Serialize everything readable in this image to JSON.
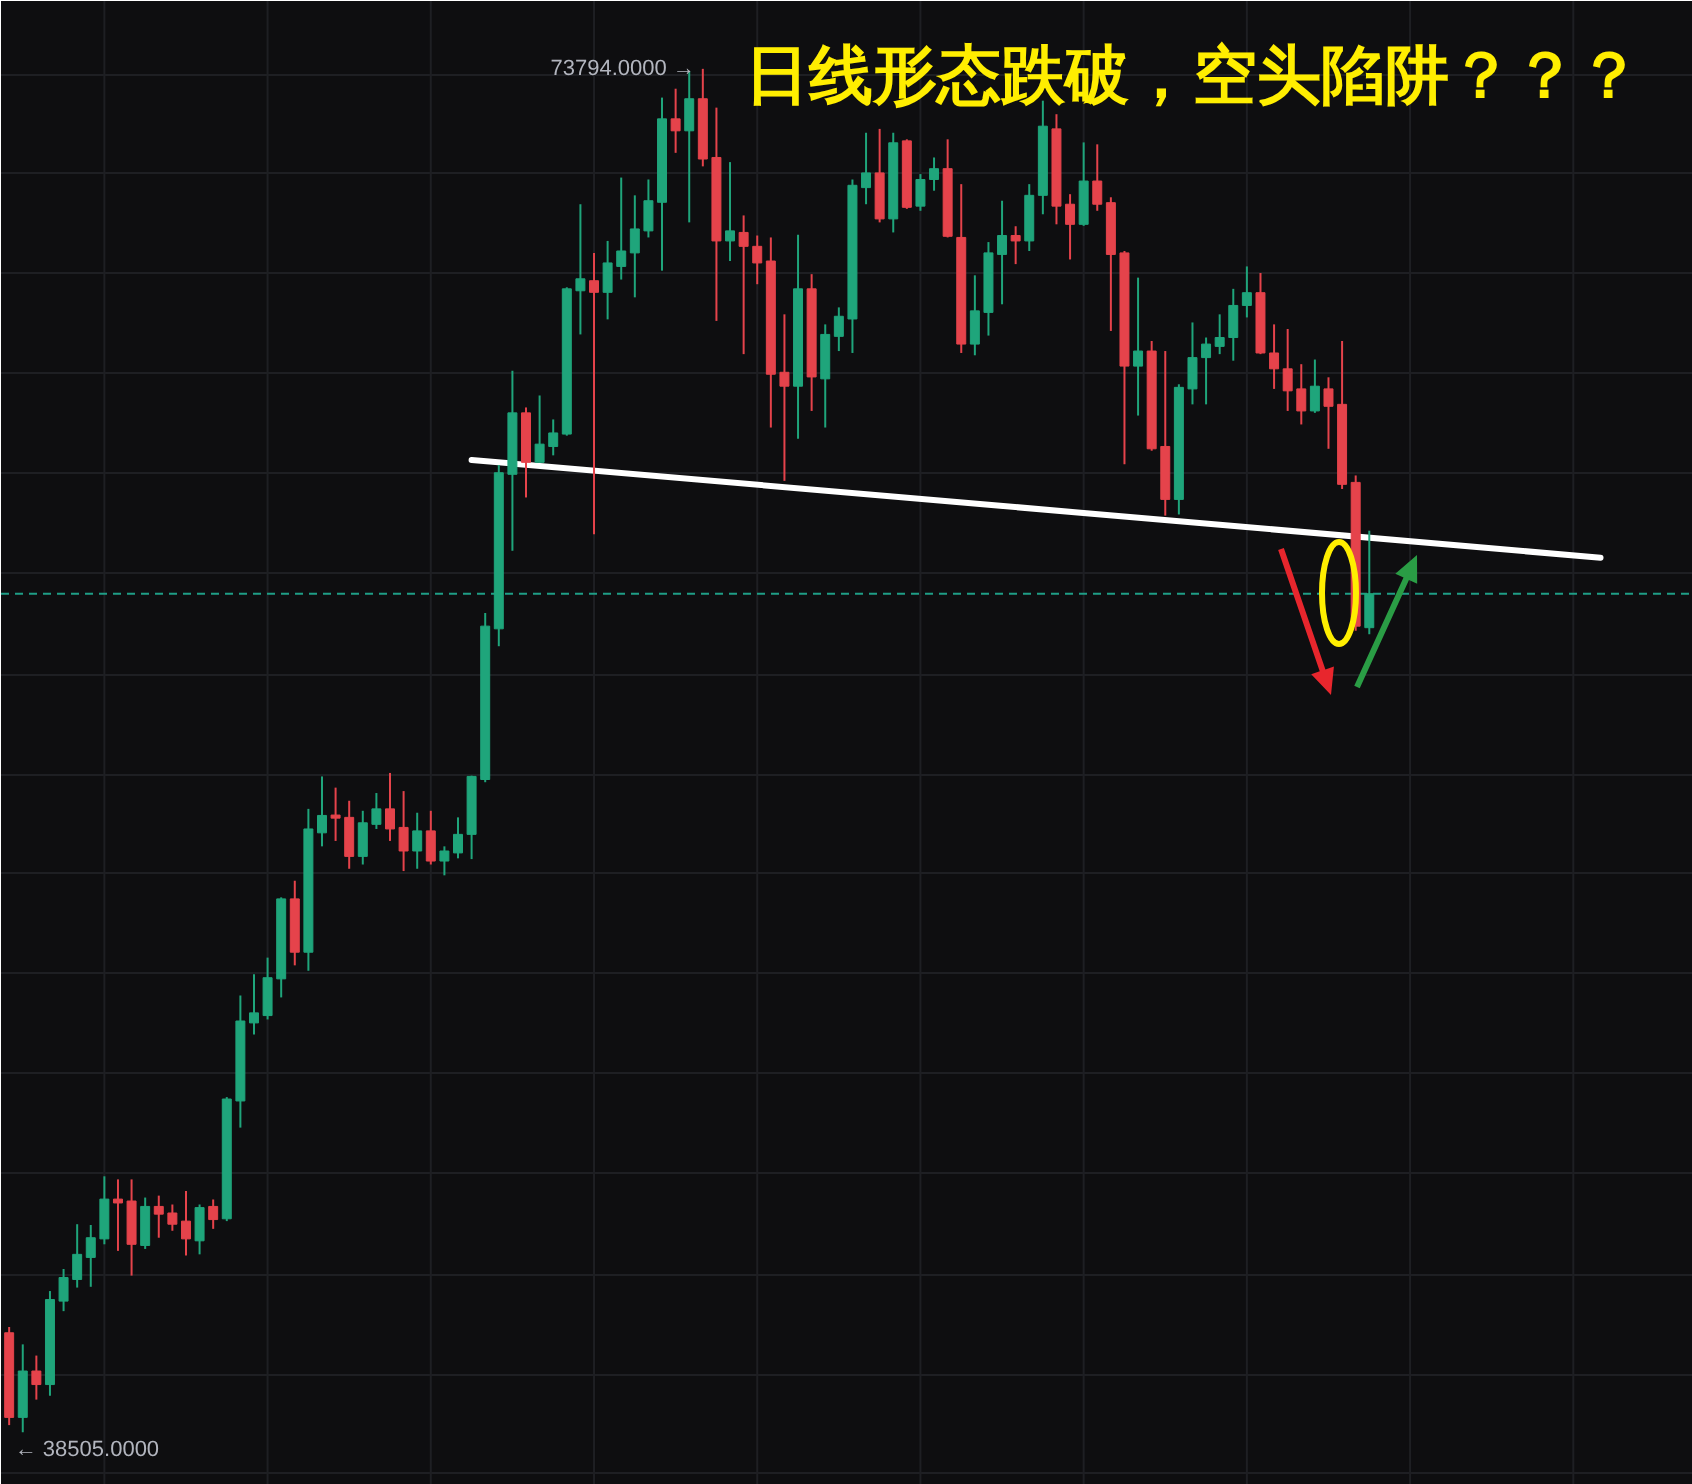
{
  "chart_data": {
    "type": "candlestick",
    "title": "日线形态跌破，空头陷阱？？？",
    "categories": [
      null,
      null,
      null,
      null,
      null,
      null,
      null,
      null,
      null,
      null,
      null,
      null,
      null,
      null,
      null,
      null,
      null,
      null,
      null,
      null,
      null,
      null,
      null,
      null,
      null,
      null,
      null,
      null,
      null,
      null,
      null,
      null,
      null,
      null,
      null,
      null,
      null,
      null,
      null,
      null,
      null,
      null,
      null,
      null,
      null,
      null,
      null,
      null,
      null,
      null,
      null,
      null,
      null,
      null,
      null,
      null,
      null,
      null,
      null,
      null,
      null,
      null,
      null,
      null,
      null,
      null,
      null,
      null,
      null,
      null,
      null,
      null,
      null,
      null,
      null,
      null,
      null,
      null,
      null,
      null,
      null,
      null,
      null,
      null,
      null,
      null,
      null,
      null,
      null,
      null,
      null,
      null,
      null,
      null,
      null,
      null,
      null,
      null,
      null,
      null,
      null,
      null,
      null,
      null,
      null,
      null,
      null,
      null,
      null,
      null,
      null,
      null,
      null,
      null,
      null,
      null,
      null,
      null,
      null,
      null,
      null,
      null,
      null,
      null
    ],
    "ohlc": [
      [
        41080,
        41230,
        38690,
        38890
      ],
      [
        38890,
        40780,
        38505,
        40090
      ],
      [
        40090,
        40490,
        39350,
        39740
      ],
      [
        39740,
        42160,
        39450,
        41940
      ],
      [
        41900,
        42730,
        41640,
        42510
      ],
      [
        42460,
        43890,
        42250,
        43110
      ],
      [
        43030,
        43870,
        42270,
        43540
      ],
      [
        43510,
        45130,
        43370,
        44540
      ],
      [
        44540,
        45050,
        43200,
        44440
      ],
      [
        44490,
        45050,
        42560,
        43370
      ],
      [
        43340,
        44580,
        43250,
        44350
      ],
      [
        44350,
        44630,
        43540,
        44150
      ],
      [
        44180,
        44400,
        43720,
        43890
      ],
      [
        43970,
        44750,
        43080,
        43510
      ],
      [
        43460,
        44400,
        43110,
        44320
      ],
      [
        44350,
        44530,
        43770,
        44010
      ],
      [
        44030,
        47180,
        43970,
        47130
      ],
      [
        47080,
        49810,
        46390,
        49150
      ],
      [
        49100,
        50360,
        48800,
        49360
      ],
      [
        49290,
        50790,
        49190,
        50270
      ],
      [
        50240,
        52350,
        49760,
        52310
      ],
      [
        52310,
        52780,
        50590,
        50930
      ],
      [
        50930,
        54640,
        50450,
        54120
      ],
      [
        54020,
        55480,
        53670,
        54470
      ],
      [
        54480,
        55190,
        53810,
        54400
      ],
      [
        54420,
        54850,
        53090,
        53410
      ],
      [
        53410,
        54590,
        53200,
        54280
      ],
      [
        54240,
        55050,
        54120,
        54640
      ],
      [
        54640,
        55570,
        53810,
        54120
      ],
      [
        54160,
        55100,
        53030,
        53550
      ],
      [
        53550,
        54540,
        53090,
        54070
      ],
      [
        54070,
        54590,
        53200,
        53290
      ],
      [
        53290,
        53670,
        52920,
        53550
      ],
      [
        53500,
        54420,
        53360,
        53980
      ],
      [
        53980,
        55500,
        53340,
        55480
      ],
      [
        55400,
        59710,
        55330,
        59370
      ],
      [
        59300,
        63540,
        58850,
        63340
      ],
      [
        63300,
        65980,
        61320,
        64890
      ],
      [
        64890,
        65030,
        62700,
        63610
      ],
      [
        63610,
        65340,
        63600,
        64080
      ],
      [
        64020,
        64720,
        63790,
        64370
      ],
      [
        64340,
        68140,
        64300,
        68100
      ],
      [
        68050,
        70290,
        66920,
        68360
      ],
      [
        68310,
        69030,
        61750,
        68010
      ],
      [
        68010,
        69340,
        67310,
        68770
      ],
      [
        68680,
        70980,
        68340,
        69080
      ],
      [
        69030,
        70520,
        67880,
        69650
      ],
      [
        69600,
        70930,
        69430,
        70380
      ],
      [
        70340,
        73050,
        68570,
        72500
      ],
      [
        72500,
        73280,
        71620,
        72190
      ],
      [
        72190,
        73740,
        69820,
        73020
      ],
      [
        73020,
        73794,
        71270,
        71460
      ],
      [
        71500,
        72790,
        67270,
        69340
      ],
      [
        69340,
        71380,
        68820,
        69600
      ],
      [
        69560,
        70000,
        66410,
        69200
      ],
      [
        69200,
        69480,
        68220,
        68770
      ],
      [
        68820,
        69430,
        64510,
        65890
      ],
      [
        65940,
        67440,
        63130,
        65580
      ],
      [
        65580,
        69500,
        64220,
        68100
      ],
      [
        68100,
        68480,
        64940,
        65820
      ],
      [
        65770,
        67180,
        64510,
        66920
      ],
      [
        66870,
        67620,
        66490,
        67390
      ],
      [
        67320,
        70930,
        66440,
        70780
      ],
      [
        70720,
        72140,
        70290,
        71100
      ],
      [
        71100,
        72240,
        69820,
        69910
      ],
      [
        69910,
        72140,
        69560,
        71880
      ],
      [
        71930,
        71970,
        70170,
        70210
      ],
      [
        70240,
        71070,
        70120,
        70930
      ],
      [
        70930,
        71500,
        70640,
        71210
      ],
      [
        71210,
        71970,
        69430,
        69460
      ],
      [
        69430,
        70810,
        66440,
        66670
      ],
      [
        66670,
        68450,
        66380,
        67530
      ],
      [
        67490,
        69310,
        66890,
        69030
      ],
      [
        68990,
        70380,
        67700,
        69480
      ],
      [
        69480,
        69720,
        68740,
        69340
      ],
      [
        69340,
        70810,
        69080,
        70520
      ],
      [
        70520,
        72970,
        70030,
        72310
      ],
      [
        72240,
        72620,
        69770,
        70240
      ],
      [
        70290,
        70550,
        68860,
        69770
      ],
      [
        69770,
        71890,
        69730,
        70890
      ],
      [
        70890,
        71840,
        70120,
        70290
      ],
      [
        70330,
        70470,
        67010,
        68990
      ],
      [
        69030,
        69080,
        63560,
        66100
      ],
      [
        66100,
        68390,
        64820,
        66490
      ],
      [
        66490,
        66750,
        63910,
        63960
      ],
      [
        64020,
        66490,
        62230,
        62650
      ],
      [
        62650,
        65630,
        62260,
        65550
      ],
      [
        65510,
        67230,
        65110,
        66320
      ],
      [
        66320,
        66840,
        65110,
        66670
      ],
      [
        66610,
        67440,
        66410,
        66840
      ],
      [
        66840,
        68100,
        66240,
        67670
      ],
      [
        67670,
        68680,
        67360,
        68000
      ],
      [
        68000,
        68510,
        66410,
        66440
      ],
      [
        66440,
        67180,
        65510,
        66030
      ],
      [
        66030,
        67060,
        64940,
        65460
      ],
      [
        65510,
        66150,
        64590,
        64940
      ],
      [
        64940,
        66270,
        64890,
        65580
      ],
      [
        65510,
        65810,
        63960,
        65060
      ],
      [
        65110,
        66750,
        62920,
        63040
      ],
      [
        63090,
        63270,
        59250,
        59370
      ],
      [
        59330,
        61840,
        59160,
        60210
      ],
      null,
      null,
      null,
      null,
      null,
      null,
      null,
      null,
      null,
      null,
      null,
      null,
      null,
      null,
      null,
      null,
      null,
      null,
      null,
      null,
      null,
      null,
      null
    ],
    "colors": [
      "#e5434b",
      "#1fa57b",
      "#e5434b",
      "#1fa57b",
      "#1fa57b",
      "#1fa57b",
      "#1fa57b",
      "#1fa57b",
      "#e5434b",
      "#e5434b",
      "#1fa57b",
      "#e5434b",
      "#e5434b",
      "#e5434b",
      "#1fa57b",
      "#e5434b",
      "#1fa57b",
      "#1fa57b",
      "#1fa57b",
      "#1fa57b",
      "#1fa57b",
      "#e5434b",
      "#1fa57b",
      "#1fa57b",
      "#e5434b",
      "#e5434b",
      "#1fa57b",
      "#1fa57b",
      "#e5434b",
      "#e5434b",
      "#1fa57b",
      "#e5434b",
      "#1fa57b",
      "#1fa57b",
      "#1fa57b",
      "#1fa57b",
      "#1fa57b",
      "#1fa57b",
      "#e5434b",
      "#1fa57b",
      "#1fa57b",
      "#1fa57b",
      "#1fa57b",
      "#e5434b",
      "#1fa57b",
      "#1fa57b",
      "#1fa57b",
      "#1fa57b",
      "#1fa57b",
      "#e5434b",
      "#1fa57b",
      "#e5434b",
      "#e5434b",
      "#1fa57b",
      "#e5434b",
      "#e5434b",
      "#e5434b",
      "#e5434b",
      "#1fa57b",
      "#e5434b",
      "#1fa57b",
      "#1fa57b",
      "#1fa57b",
      "#1fa57b",
      "#e5434b",
      "#1fa57b",
      "#e5434b",
      "#1fa57b",
      "#1fa57b",
      "#e5434b",
      "#e5434b",
      "#1fa57b",
      "#1fa57b",
      "#1fa57b",
      "#e5434b",
      "#1fa57b",
      "#1fa57b",
      "#e5434b",
      "#e5434b",
      "#1fa57b",
      "#e5434b",
      "#e5434b",
      "#e5434b",
      "#1fa57b",
      "#e5434b",
      "#e5434b",
      "#1fa57b",
      "#1fa57b",
      "#1fa57b",
      "#1fa57b",
      "#1fa57b",
      "#1fa57b",
      "#e5434b",
      "#e5434b",
      "#e5434b",
      "#e5434b",
      "#1fa57b",
      "#e5434b",
      "#e5434b",
      "#e5434b",
      "#1fa57b",
      null,
      null,
      null,
      null,
      null,
      null,
      null,
      null,
      null,
      null,
      null,
      null,
      null,
      null,
      null,
      null,
      null,
      null,
      null,
      null,
      null,
      null,
      null
    ],
    "series": [
      {
        "type": "line",
        "color": "#ffffff",
        "values": [
          null,
          null,
          null,
          null,
          null,
          null,
          null,
          null,
          null,
          null,
          null,
          null,
          null,
          null,
          null,
          null,
          null,
          null,
          null,
          null,
          null,
          null,
          null,
          null,
          null,
          null,
          null,
          null,
          null,
          null,
          null,
          null,
          null,
          null,
          63670,
          null,
          null,
          null,
          null,
          null,
          null,
          null,
          null,
          null,
          null,
          null,
          null,
          null,
          null,
          null,
          null,
          null,
          null,
          null,
          null,
          null,
          null,
          null,
          null,
          null,
          null,
          null,
          null,
          null,
          null,
          null,
          null,
          null,
          null,
          null,
          null,
          null,
          null,
          null,
          null,
          null,
          null,
          null,
          null,
          null,
          null,
          null,
          null,
          null,
          null,
          null,
          null,
          null,
          null,
          null,
          null,
          null,
          null,
          null,
          null,
          null,
          null,
          null,
          null,
          null,
          null,
          null,
          null,
          null,
          null,
          null,
          null,
          null,
          null,
          null,
          null,
          null,
          null,
          null,
          null,
          null,
          null,
          61140,
          null,
          null,
          null,
          null,
          null,
          null
        ]
      }
    ],
    "ref_lines": [
      {
        "axis": "y",
        "value": 60210,
        "color": "#1f9e86",
        "line_style": "dashed"
      }
    ],
    "annotations": [
      "73794.0000 →",
      "← 38505.0000"
    ],
    "ylim": [
      37140,
      75550
    ],
    "yticks": [
      {
        "value": 73660,
        "label": null
      },
      {
        "value": 71080,
        "label": null
      },
      {
        "value": 68490,
        "label": null
      },
      {
        "value": 65900,
        "label": null
      },
      {
        "value": 63310,
        "label": null
      },
      {
        "value": 60720,
        "label": null
      },
      {
        "value": 58130,
        "label": null
      },
      {
        "value": 55540,
        "label": null
      },
      {
        "value": 52960,
        "label": null
      },
      {
        "value": 50370,
        "label": null
      },
      {
        "value": 47780,
        "label": null
      },
      {
        "value": 45190,
        "label": null
      },
      {
        "value": 42600,
        "label": null
      },
      {
        "value": 40010,
        "label": null
      },
      {
        "value": 37430,
        "label": null
      }
    ],
    "tick_labels": false,
    "grid": true
  }
}
